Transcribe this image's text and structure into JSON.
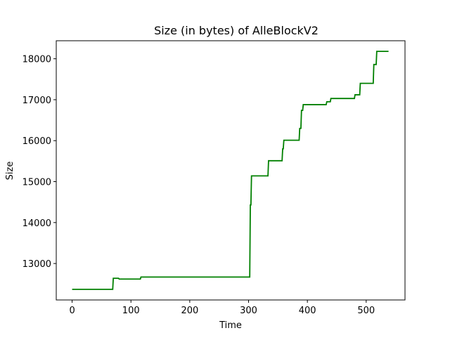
{
  "chart_data": {
    "type": "line",
    "title": "Size (in bytes) of AlleBlockV2",
    "xlabel": "Time",
    "ylabel": "Size",
    "xlim": [
      -27,
      566
    ],
    "ylim": [
      12110,
      18440
    ],
    "grid": false,
    "legend": "none",
    "x_ticks": [
      0,
      100,
      200,
      300,
      400,
      500
    ],
    "x_tick_labels": [
      "0",
      "100",
      "200",
      "300",
      "400",
      "500"
    ],
    "y_ticks": [
      13000,
      14000,
      15000,
      16000,
      17000,
      18000
    ],
    "y_tick_labels": [
      "13000",
      "14000",
      "15000",
      "16000",
      "17000",
      "18000"
    ],
    "line_color": "#008000",
    "series": [
      {
        "points": [
          [
            0,
            12370
          ],
          [
            69,
            12370
          ],
          [
            70,
            12640
          ],
          [
            79,
            12640
          ],
          [
            80,
            12620
          ],
          [
            116,
            12620
          ],
          [
            117,
            12670
          ],
          [
            302,
            12670
          ],
          [
            303,
            14430
          ],
          [
            304,
            14430
          ],
          [
            305,
            15140
          ],
          [
            333,
            15140
          ],
          [
            334,
            15510
          ],
          [
            357,
            15510
          ],
          [
            358,
            15800
          ],
          [
            359,
            15800
          ],
          [
            360,
            16010
          ],
          [
            386,
            16010
          ],
          [
            387,
            16300
          ],
          [
            389,
            16300
          ],
          [
            390,
            16740
          ],
          [
            392,
            16740
          ],
          [
            393,
            16880
          ],
          [
            432,
            16880
          ],
          [
            433,
            16950
          ],
          [
            439,
            16950
          ],
          [
            440,
            17030
          ],
          [
            480,
            17030
          ],
          [
            481,
            17120
          ],
          [
            489,
            17120
          ],
          [
            490,
            17400
          ],
          [
            512,
            17400
          ],
          [
            513,
            17860
          ],
          [
            517,
            17860
          ],
          [
            518,
            18180
          ],
          [
            538,
            18180
          ]
        ]
      }
    ]
  }
}
